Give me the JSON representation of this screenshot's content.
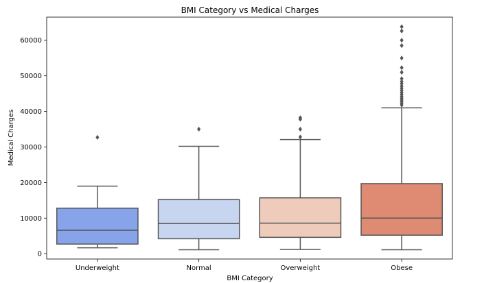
{
  "chart_data": {
    "type": "box",
    "title": "BMI Category vs Medical Charges",
    "xlabel": "BMI Category",
    "ylabel": "Medical Charges",
    "ylim": [
      -1500,
      66500
    ],
    "yticks": [
      0,
      10000,
      20000,
      30000,
      40000,
      50000,
      60000
    ],
    "ytick_labels": [
      "0",
      "10000",
      "20000",
      "30000",
      "40000",
      "50000",
      "60000"
    ],
    "grid": false,
    "categories": [
      "Underweight",
      "Normal",
      "Overweight",
      "Obese"
    ],
    "boxes": [
      {
        "category": "Underweight",
        "color": "#87a4eb",
        "whisker_low": 1650,
        "q1": 2700,
        "median": 6600,
        "q3": 12800,
        "whisker_high": 19000,
        "outliers": [
          32700
        ]
      },
      {
        "category": "Normal",
        "color": "#c8d5f1",
        "whisker_low": 1100,
        "q1": 4200,
        "median": 8500,
        "q3": 15200,
        "whisker_high": 30200,
        "outliers": [
          35000
        ]
      },
      {
        "category": "Overweight",
        "color": "#eecbbb",
        "whisker_low": 1200,
        "q1": 4600,
        "median": 8600,
        "q3": 15700,
        "whisker_high": 32100,
        "outliers": [
          32800,
          35000,
          37800,
          38200
        ]
      },
      {
        "category": "Obese",
        "color": "#df8b74",
        "whisker_low": 1100,
        "q1": 5200,
        "median": 10000,
        "q3": 19700,
        "whisker_high": 41000,
        "outliers": [
          41800,
          42200,
          42700,
          43200,
          43700,
          44200,
          44800,
          45300,
          45900,
          46500,
          47100,
          47800,
          48400,
          49200,
          51000,
          52300,
          55000,
          58500,
          60000,
          62600,
          63800
        ]
      }
    ],
    "style": {
      "box_edge": "#555555",
      "axis": "#000000",
      "outlier_fill": "#555555"
    }
  }
}
